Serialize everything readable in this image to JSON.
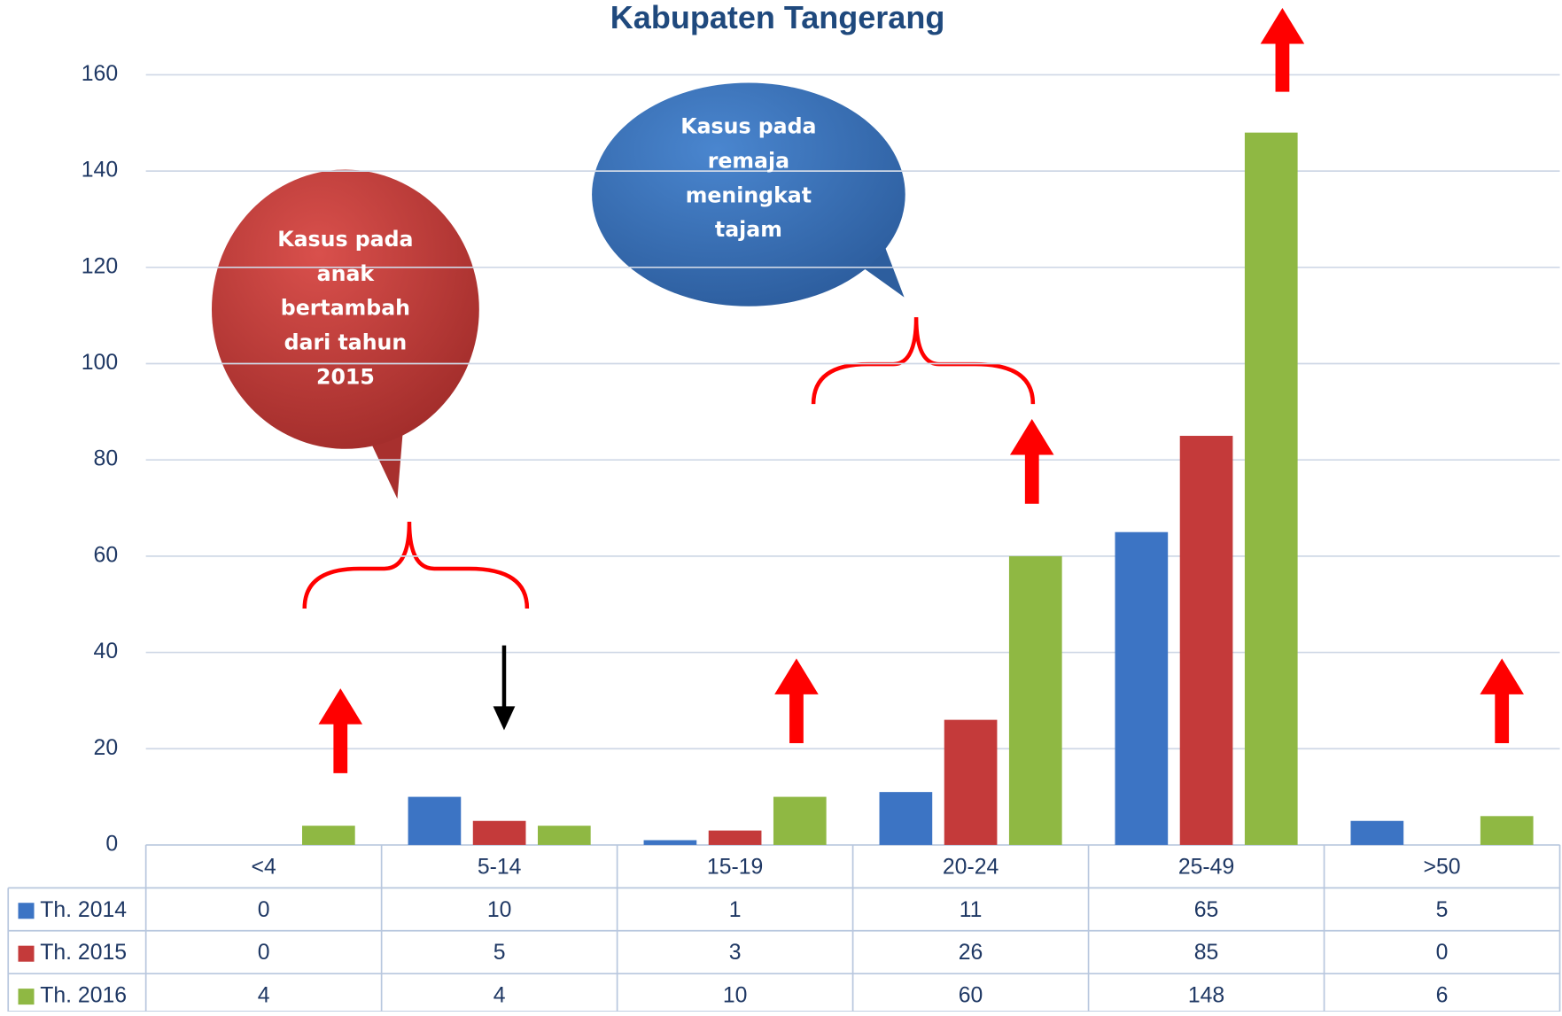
{
  "chart_data": {
    "type": "bar",
    "title": "Kabupaten Tangerang",
    "categories": [
      "<4",
      "5-14",
      "15-19",
      "20-24",
      "25-49",
      ">50"
    ],
    "series": [
      {
        "name": "Th. 2014",
        "color": "#3c74c4",
        "values": [
          0,
          10,
          1,
          11,
          65,
          5
        ]
      },
      {
        "name": "Th. 2015",
        "color": "#c43a3a",
        "values": [
          0,
          5,
          3,
          26,
          85,
          0
        ]
      },
      {
        "name": "Th. 2016",
        "color": "#8fb843",
        "values": [
          4,
          4,
          10,
          60,
          148,
          6
        ]
      }
    ],
    "ylim": [
      0,
      160
    ],
    "yticks": [
      0,
      20,
      40,
      60,
      80,
      100,
      120,
      140,
      160
    ],
    "grid": true,
    "annotations": [
      {
        "lines": [
          "Kasus pada",
          "anak",
          "bertambah",
          "dari tahun",
          "2015"
        ]
      },
      {
        "lines": [
          "Kasus pada",
          "remaja",
          "meningkat",
          "tajam"
        ]
      }
    ]
  }
}
